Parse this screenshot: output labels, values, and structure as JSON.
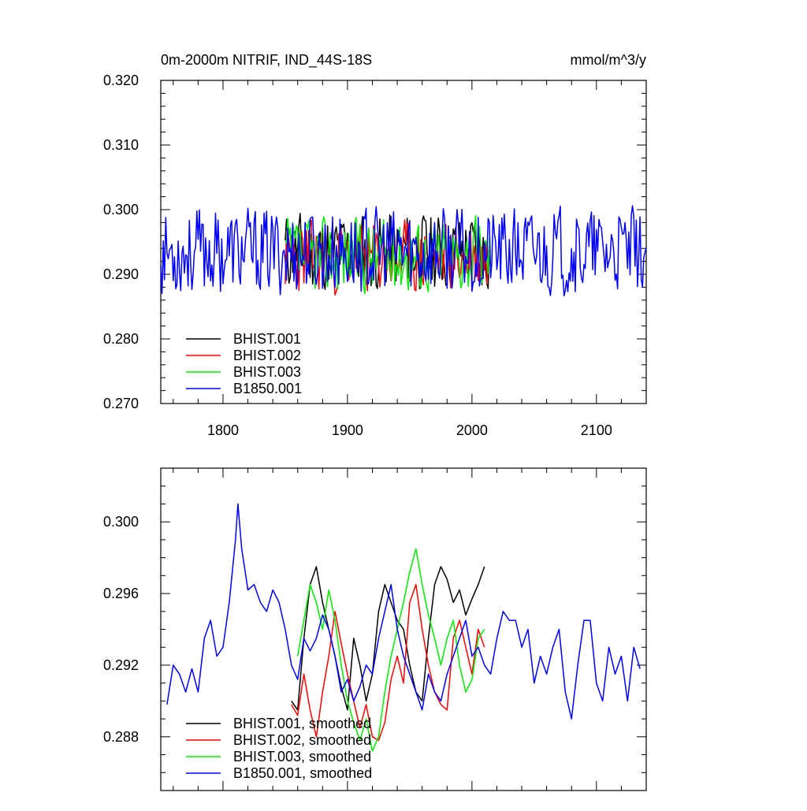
{
  "chart_data": [
    {
      "type": "line",
      "title": "0m-2000m NITRIF, IND_44S-18S",
      "units": "mmol/m^3/y",
      "xlim": [
        1750,
        2140
      ],
      "ylim": [
        0.27,
        0.32
      ],
      "x_ticks": [
        1800,
        1900,
        2000,
        2100
      ],
      "x_tick_labels": [
        "1800",
        "1900",
        "2000",
        "2100"
      ],
      "y_ticks": [
        0.27,
        0.28,
        0.29,
        0.3,
        0.31,
        0.32
      ],
      "y_tick_labels": [
        "0.270",
        "0.280",
        "0.290",
        "0.300",
        "0.310",
        "0.320"
      ],
      "legend_position": "bottom-left",
      "series": [
        {
          "name": "BHIST.001",
          "color": "#000000",
          "x_start": 1850,
          "x_end": 2015,
          "mean": 0.2935,
          "amp": 0.0065,
          "seed": 11
        },
        {
          "name": "BHIST.002",
          "color": "#ff0000",
          "x_start": 1850,
          "x_end": 2015,
          "mean": 0.2925,
          "amp": 0.006,
          "seed": 23
        },
        {
          "name": "BHIST.003",
          "color": "#00ee00",
          "x_start": 1850,
          "x_end": 2015,
          "mean": 0.293,
          "amp": 0.0062,
          "seed": 37
        },
        {
          "name": "B1850.001",
          "color": "#0000ff",
          "x_start": 1750,
          "x_end": 2140,
          "mean": 0.2935,
          "amp": 0.007,
          "seed": 53
        }
      ]
    },
    {
      "type": "line",
      "xlim": [
        1750,
        2140
      ],
      "ylim": [
        0.285,
        0.303
      ],
      "x_ticks": [
        1800,
        1900,
        2000,
        2100
      ],
      "y_ticks": [
        0.288,
        0.292,
        0.296,
        0.3
      ],
      "y_tick_labels": [
        "0.288",
        "0.292",
        "0.296",
        "0.300"
      ],
      "legend_position": "bottom-left",
      "series": [
        {
          "name": "BHIST.001, smoothed",
          "color": "#000000",
          "x": [
            1855,
            1860,
            1865,
            1870,
            1875,
            1880,
            1885,
            1890,
            1895,
            1900,
            1905,
            1910,
            1915,
            1920,
            1925,
            1930,
            1935,
            1940,
            1945,
            1950,
            1955,
            1960,
            1965,
            1970,
            1975,
            1980,
            1985,
            1990,
            1995,
            2000,
            2005,
            2010
          ],
          "y": [
            0.29,
            0.2895,
            0.2935,
            0.2965,
            0.2975,
            0.2955,
            0.294,
            0.2925,
            0.2908,
            0.2895,
            0.2935,
            0.292,
            0.29,
            0.2915,
            0.295,
            0.2965,
            0.2955,
            0.2945,
            0.294,
            0.292,
            0.2905,
            0.29,
            0.2935,
            0.2965,
            0.2975,
            0.2968,
            0.2955,
            0.2962,
            0.2948,
            0.2957,
            0.2965,
            0.2975
          ]
        },
        {
          "name": "BHIST.002, smoothed",
          "color": "#ff0000",
          "x": [
            1855,
            1860,
            1865,
            1870,
            1875,
            1880,
            1885,
            1890,
            1895,
            1900,
            1905,
            1910,
            1915,
            1920,
            1925,
            1930,
            1935,
            1940,
            1945,
            1950,
            1955,
            1960,
            1965,
            1970,
            1975,
            1980,
            1985,
            1990,
            1995,
            2000,
            2005,
            2010
          ],
          "y": [
            0.2898,
            0.2892,
            0.2915,
            0.2895,
            0.288,
            0.2905,
            0.2925,
            0.295,
            0.2932,
            0.2915,
            0.29,
            0.2885,
            0.2898,
            0.288,
            0.2878,
            0.2888,
            0.2912,
            0.2925,
            0.291,
            0.2955,
            0.2965,
            0.294,
            0.292,
            0.2905,
            0.2898,
            0.2895,
            0.2935,
            0.2945,
            0.293,
            0.2915,
            0.294,
            0.293
          ]
        },
        {
          "name": "BHIST.003, smoothed",
          "color": "#00ee00",
          "x": [
            1860,
            1865,
            1870,
            1875,
            1880,
            1885,
            1890,
            1895,
            1900,
            1905,
            1910,
            1915,
            1920,
            1925,
            1930,
            1935,
            1940,
            1945,
            1950,
            1955,
            1960,
            1965,
            1970,
            1975,
            1980,
            1985,
            1990,
            1995,
            2000,
            2005,
            2010
          ],
          "y": [
            0.2925,
            0.2945,
            0.2965,
            0.2955,
            0.294,
            0.2962,
            0.2945,
            0.292,
            0.29,
            0.2888,
            0.2878,
            0.289,
            0.2872,
            0.288,
            0.2905,
            0.2925,
            0.294,
            0.2955,
            0.2972,
            0.2985,
            0.2965,
            0.2948,
            0.2935,
            0.292,
            0.2935,
            0.2945,
            0.292,
            0.2905,
            0.2912,
            0.2935,
            0.294
          ]
        },
        {
          "name": "B1850.001, smoothed",
          "color": "#0000ff",
          "x": [
            1755,
            1760,
            1765,
            1770,
            1775,
            1780,
            1785,
            1790,
            1795,
            1800,
            1805,
            1810,
            1812,
            1815,
            1820,
            1825,
            1830,
            1835,
            1840,
            1845,
            1850,
            1855,
            1860,
            1865,
            1870,
            1875,
            1880,
            1885,
            1890,
            1895,
            1900,
            1905,
            1910,
            1915,
            1920,
            1925,
            1930,
            1935,
            1940,
            1945,
            1950,
            1955,
            1960,
            1965,
            1970,
            1975,
            1980,
            1985,
            1990,
            1995,
            2000,
            2005,
            2010,
            2015,
            2020,
            2025,
            2030,
            2035,
            2040,
            2045,
            2050,
            2055,
            2060,
            2065,
            2070,
            2075,
            2080,
            2085,
            2090,
            2095,
            2100,
            2105,
            2110,
            2115,
            2120,
            2125,
            2130,
            2135
          ],
          "y": [
            0.2898,
            0.292,
            0.2915,
            0.2905,
            0.2918,
            0.2905,
            0.2935,
            0.2945,
            0.2925,
            0.293,
            0.2955,
            0.299,
            0.301,
            0.2985,
            0.2962,
            0.2965,
            0.2955,
            0.295,
            0.2962,
            0.2955,
            0.294,
            0.292,
            0.2912,
            0.2935,
            0.2928,
            0.2935,
            0.2948,
            0.294,
            0.2925,
            0.2905,
            0.2912,
            0.29,
            0.2908,
            0.292,
            0.2915,
            0.2935,
            0.295,
            0.2965,
            0.294,
            0.2925,
            0.2915,
            0.2905,
            0.2895,
            0.2915,
            0.2905,
            0.29,
            0.2915,
            0.2925,
            0.2935,
            0.2945,
            0.2925,
            0.293,
            0.292,
            0.2915,
            0.2935,
            0.295,
            0.2945,
            0.2945,
            0.293,
            0.294,
            0.291,
            0.2925,
            0.2915,
            0.293,
            0.294,
            0.2905,
            0.289,
            0.292,
            0.2945,
            0.2945,
            0.291,
            0.29,
            0.293,
            0.2915,
            0.2925,
            0.29,
            0.293,
            0.2918
          ]
        }
      ]
    }
  ]
}
